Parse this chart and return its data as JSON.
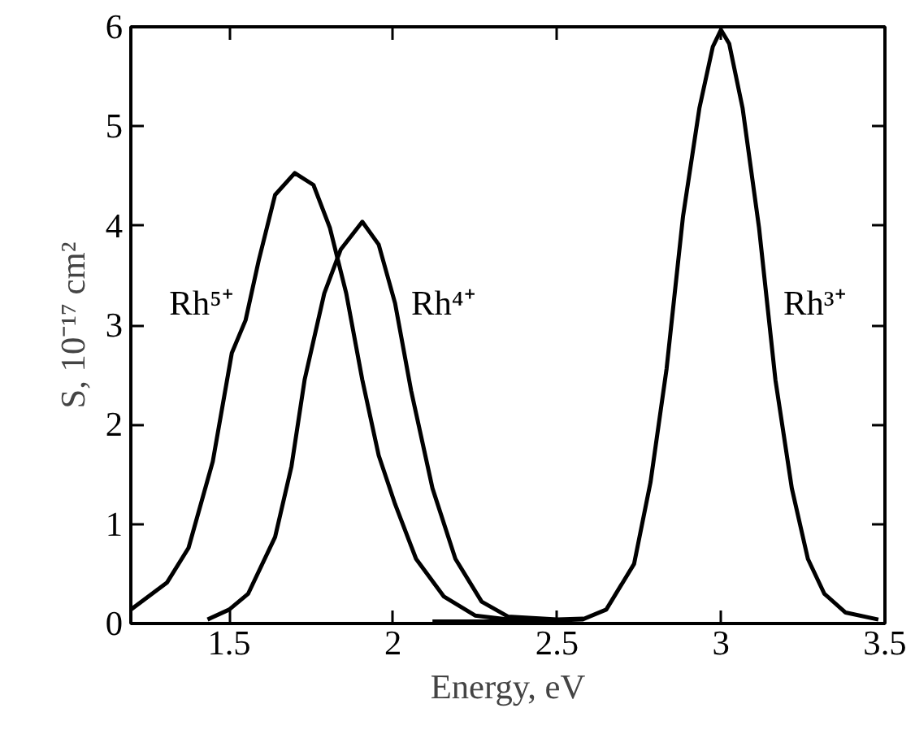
{
  "chart_data": {
    "type": "line",
    "xlabel": "Energy, eV",
    "ylabel": "S, 10⁻¹⁷ cm²",
    "xlim": [
      1.2,
      3.5
    ],
    "ylim": [
      0,
      6
    ],
    "xticks": [
      1.5,
      2,
      2.5,
      3,
      3.5
    ],
    "yticks": [
      0,
      1,
      2,
      3,
      4,
      5,
      6
    ],
    "grid": false,
    "series": [
      {
        "name": "Rh⁵⁺",
        "color": "#000000",
        "x": [
          1.2,
          1.31,
          1.376,
          1.45,
          1.508,
          1.55,
          1.59,
          1.64,
          1.7,
          1.757,
          1.807,
          1.857,
          1.906,
          1.956,
          2.006,
          2.07,
          2.155,
          2.25,
          2.35,
          2.45
        ],
        "values": [
          0.14,
          0.41,
          0.76,
          1.63,
          2.72,
          3.05,
          3.65,
          4.31,
          4.53,
          4.41,
          3.98,
          3.32,
          2.45,
          1.69,
          1.2,
          0.65,
          0.27,
          0.08,
          0.04,
          0.03
        ]
      },
      {
        "name": "Rh⁴⁺",
        "color": "#000000",
        "x": [
          1.434,
          1.5,
          1.558,
          1.64,
          1.69,
          1.73,
          1.79,
          1.84,
          1.906,
          1.956,
          2.006,
          2.055,
          2.12,
          2.19,
          2.27,
          2.35,
          2.5,
          2.58
        ],
        "values": [
          0.04,
          0.14,
          0.3,
          0.87,
          1.58,
          2.45,
          3.32,
          3.76,
          4.04,
          3.81,
          3.22,
          2.34,
          1.36,
          0.65,
          0.22,
          0.07,
          0.04,
          0.05
        ]
      },
      {
        "name": "Rh³⁺",
        "color": "#000000",
        "x": [
          2.12,
          2.4,
          2.577,
          2.65,
          2.735,
          2.785,
          2.834,
          2.884,
          2.934,
          2.975,
          3.0,
          3.025,
          3.066,
          3.116,
          3.166,
          3.216,
          3.265,
          3.315,
          3.38,
          3.48
        ],
        "values": [
          0.02,
          0.02,
          0.04,
          0.14,
          0.6,
          1.42,
          2.56,
          4.09,
          5.18,
          5.8,
          5.97,
          5.83,
          5.18,
          3.98,
          2.45,
          1.36,
          0.65,
          0.3,
          0.11,
          0.04
        ]
      }
    ]
  }
}
